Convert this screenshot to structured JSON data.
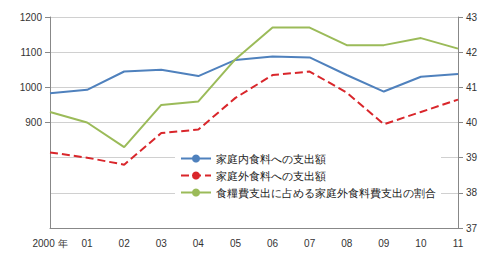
{
  "chart_data": {
    "type": "line",
    "categories": [
      "2000 年",
      "01",
      "02",
      "03",
      "04",
      "05",
      "06",
      "07",
      "08",
      "09",
      "10",
      "11"
    ],
    "series": [
      {
        "name": "家庭内食料への支出額",
        "color": "#4f81bd",
        "line_style": "solid",
        "axis": "y",
        "values": [
          983,
          993,
          1045,
          1050,
          1032,
          1078,
          1088,
          1085,
          1035,
          988,
          1030,
          1038
        ]
      },
      {
        "name": "家庭外食料への支出額",
        "color": "#d9262b",
        "line_style": "dashed",
        "axis": "y",
        "values": [
          815,
          800,
          780,
          870,
          880,
          970,
          1035,
          1045,
          985,
          895,
          930,
          965
        ]
      },
      {
        "name": "食糧費支出に占める家庭外食料費支出の割合",
        "color": "#9bbb59",
        "line_style": "solid",
        "axis": "y2",
        "values": [
          40.3,
          40.0,
          39.3,
          40.5,
          40.6,
          41.8,
          42.7,
          42.7,
          42.2,
          42.2,
          42.4,
          42.1
        ]
      }
    ],
    "ylim": [
      600,
      1200
    ],
    "yticks": [
      900,
      1000,
      1100,
      1200
    ],
    "y2lim": [
      37,
      43
    ],
    "y2ticks": [
      37,
      38,
      39,
      40,
      41,
      42,
      43
    ],
    "grid": true,
    "legend": "lower right"
  }
}
